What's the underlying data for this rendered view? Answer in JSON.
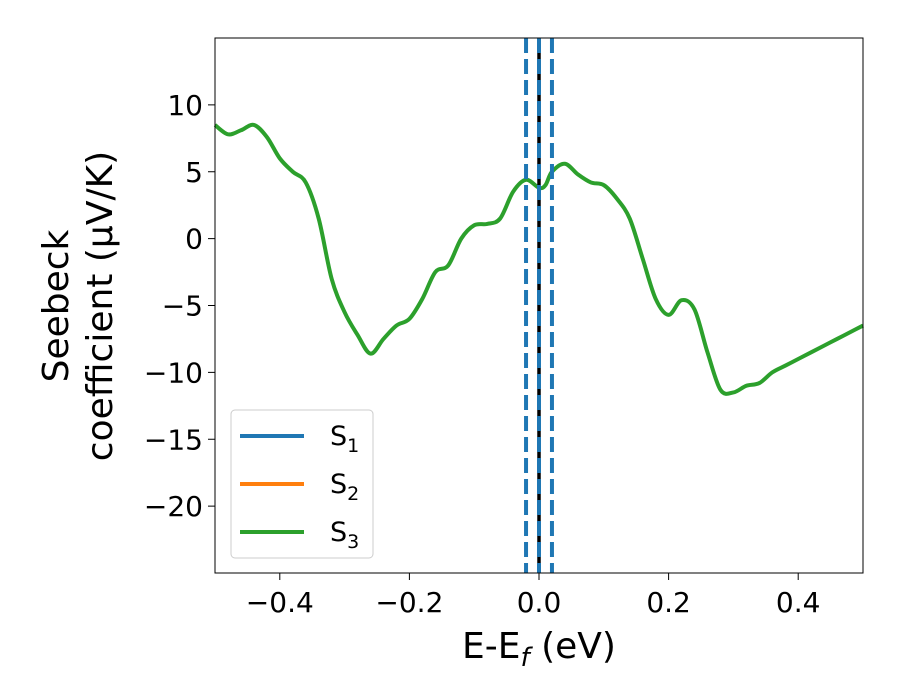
{
  "chart_data": {
    "type": "line",
    "title": "",
    "xlabel": {
      "main": "E-E",
      "sub": "f",
      "tail": " (eV)"
    },
    "ylabel": {
      "line1": "Seebeck",
      "line2": "coefficient  (μV/K)"
    },
    "xlim": [
      -0.5,
      0.5
    ],
    "ylim": [
      -25,
      15
    ],
    "xticks": [
      -0.4,
      -0.2,
      0.0,
      0.2,
      0.4
    ],
    "xtick_labels": [
      "−0.4",
      "−0.2",
      "0.0",
      "0.2",
      "0.4"
    ],
    "yticks": [
      10,
      5,
      0,
      -5,
      -10,
      -15,
      -20
    ],
    "ytick_labels": [
      "10",
      "5",
      "0",
      "−5",
      "−10",
      "−15",
      "−20"
    ],
    "grid": false,
    "legend_placement": "lower-left",
    "series": [
      {
        "name": "S",
        "sub": "1",
        "color": "#1f77b4",
        "x": [],
        "y": []
      },
      {
        "name": "S",
        "sub": "2",
        "color": "#ff7f0e",
        "x": [],
        "y": []
      },
      {
        "name": "S",
        "sub": "3",
        "color": "#2ca02c",
        "x": [
          -0.5,
          -0.48,
          -0.46,
          -0.44,
          -0.42,
          -0.4,
          -0.38,
          -0.36,
          -0.34,
          -0.32,
          -0.3,
          -0.28,
          -0.26,
          -0.24,
          -0.22,
          -0.2,
          -0.18,
          -0.16,
          -0.14,
          -0.12,
          -0.1,
          -0.08,
          -0.06,
          -0.04,
          -0.02,
          0.0,
          0.01,
          0.02,
          0.04,
          0.06,
          0.08,
          0.1,
          0.12,
          0.14,
          0.16,
          0.18,
          0.2,
          0.22,
          0.24,
          0.26,
          0.28,
          0.3,
          0.32,
          0.34,
          0.36,
          0.38,
          0.4,
          0.42,
          0.44,
          0.46,
          0.48,
          0.5
        ],
        "y": [
          8.5,
          7.8,
          8.1,
          8.5,
          7.6,
          6.0,
          5.0,
          4.2,
          1.5,
          -3.0,
          -5.5,
          -7.2,
          -8.6,
          -7.5,
          -6.5,
          -6.0,
          -4.5,
          -2.5,
          -2.0,
          0.0,
          1.0,
          1.1,
          1.5,
          3.5,
          4.4,
          3.8,
          4.0,
          5.0,
          5.6,
          4.8,
          4.2,
          4.0,
          3.0,
          1.5,
          -1.5,
          -4.5,
          -5.7,
          -4.6,
          -5.3,
          -8.5,
          -11.3,
          -11.5,
          -11.0,
          -10.8,
          -10.0,
          -9.5,
          -9.0,
          -8.5,
          -8.0,
          -7.5,
          -7.0,
          -6.5
        ]
      }
    ],
    "vlines": [
      {
        "x": 0.0,
        "color": "#000000",
        "style": "solid"
      },
      {
        "x": -0.02,
        "color": "#1f77b4",
        "style": "dashed"
      },
      {
        "x": 0.0,
        "color": "#1f77b4",
        "style": "dashed"
      },
      {
        "x": 0.02,
        "color": "#1f77b4",
        "style": "dashed"
      }
    ]
  }
}
